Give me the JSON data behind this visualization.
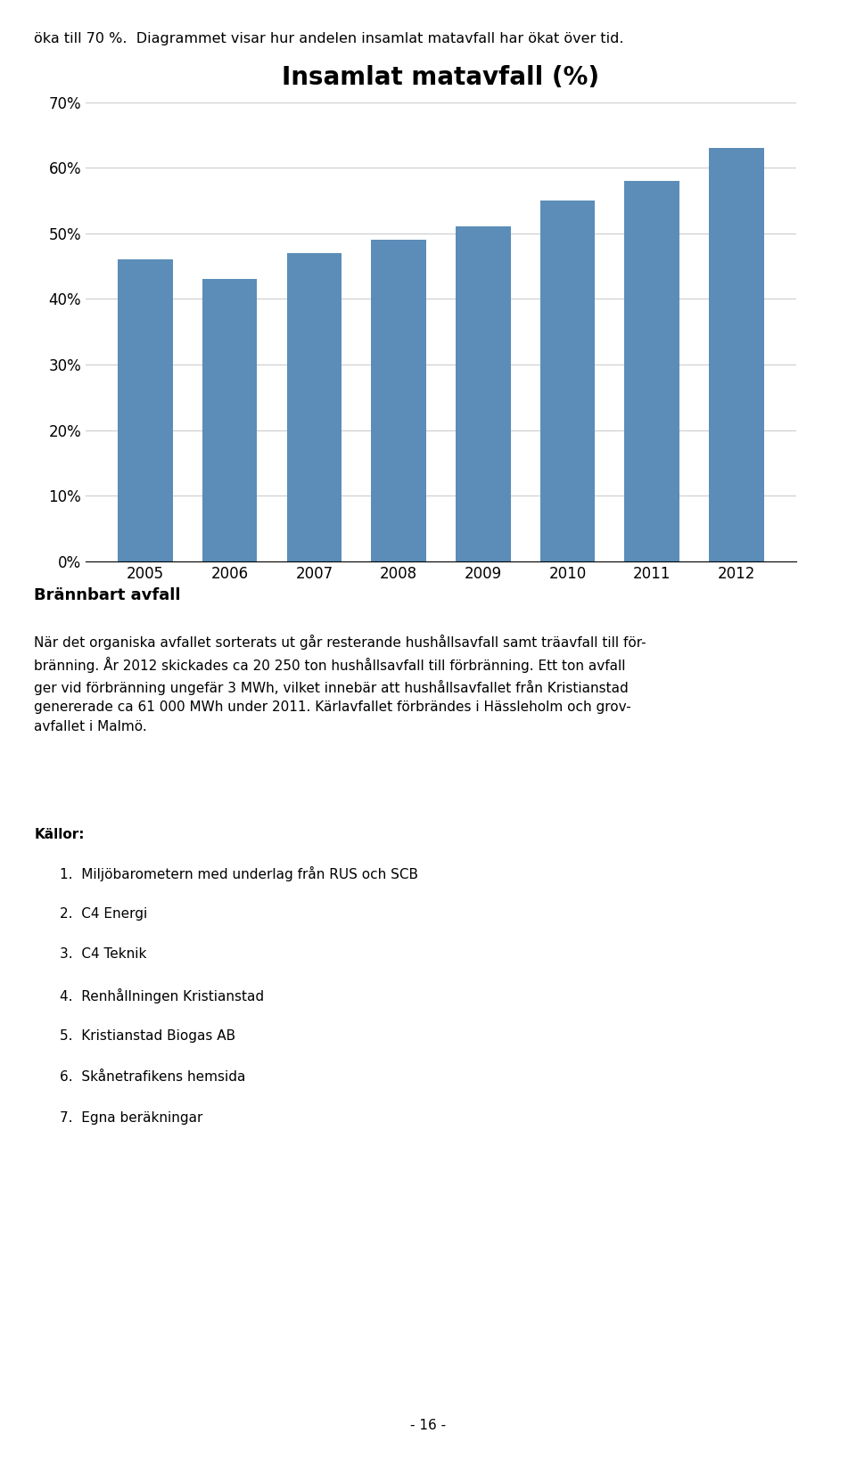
{
  "title": "Insamlat matavfall (%)",
  "years": [
    2005,
    2006,
    2007,
    2008,
    2009,
    2010,
    2011,
    2012
  ],
  "values": [
    0.46,
    0.43,
    0.47,
    0.49,
    0.51,
    0.55,
    0.58,
    0.63
  ],
  "bar_color": "#5B8DB8",
  "ylim": [
    0,
    0.7
  ],
  "yticks": [
    0.0,
    0.1,
    0.2,
    0.3,
    0.4,
    0.5,
    0.6,
    0.7
  ],
  "ytick_labels": [
    "0%",
    "10%",
    "20%",
    "30%",
    "40%",
    "50%",
    "60%",
    "70%"
  ],
  "background_color": "#ffffff",
  "grid_color": "#cccccc",
  "title_fontsize": 20,
  "tick_fontsize": 12,
  "header_text": "öka till 70 %.  Diagrammet visar hur andelen insamlat matavfall har ökat över tid.",
  "section_title": "Brännbart avfall",
  "body_text": "När det organiska avfallet sorterats ut går resterande hushållsavfall samt träavfall till för-\nbränning. År 2012 skickades ca 20 250 ton hushållsavfall till förbränning. Ett ton avfall\nger vid förbränning ungefär 3 MWh, vilket innebär att hushållsavfallet från Kristianstad\ngenererade ca 61 000 MWh under 2011. Kärlavfallet förbrändes i Hässleholm och grov-\navfallet i Malmö.",
  "sources_title": "Källor:",
  "sources": [
    "Miljöbarometern med underlag från RUS och SCB",
    "C4 Energi",
    "C4 Teknik",
    "Renhållningen Kristianstad",
    "Kristianstad Biogas AB",
    "Skånetrafikens hemsida",
    "Egna beräkningar"
  ],
  "page_number": "- 16 -"
}
